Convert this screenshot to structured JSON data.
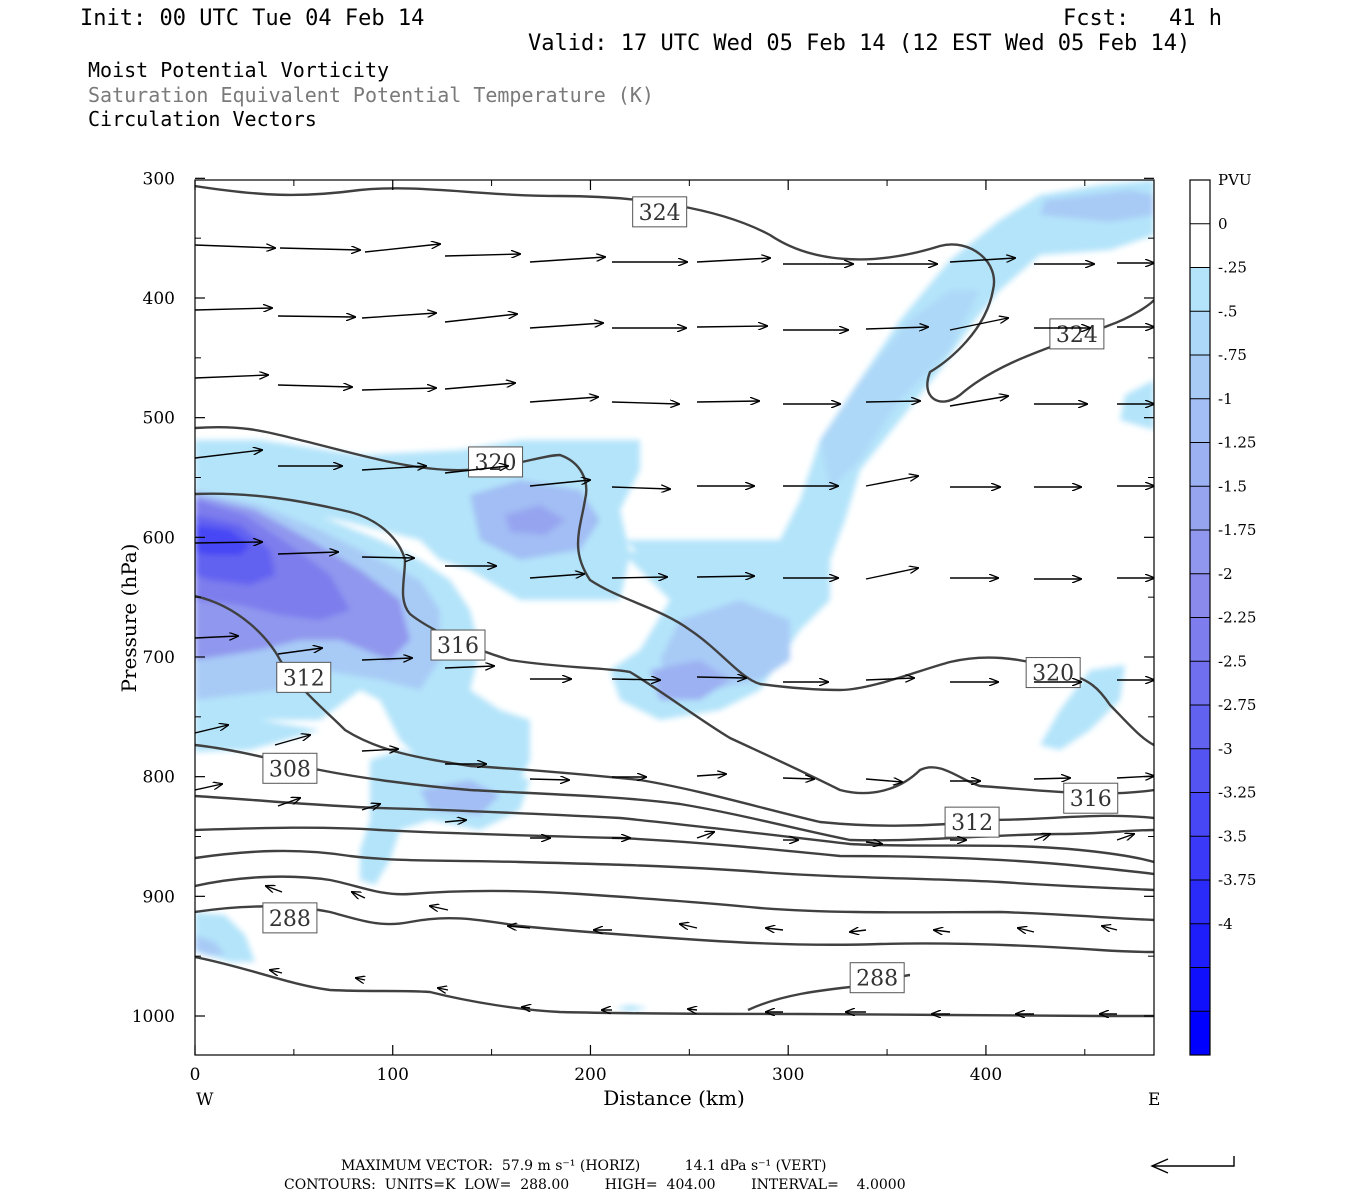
{
  "header": {
    "init": "Init: 00 UTC Tue 04 Feb 14",
    "fcst": "Fcst:   41 h",
    "valid": "Valid: 17 UTC Wed 05 Feb 14 (12 EST Wed 05 Feb 14)"
  },
  "titles": {
    "line1": "Moist Potential Vorticity",
    "line2": "Saturation Equivalent Potential Temperature (K)",
    "line3": "Circulation Vectors"
  },
  "colors": {
    "shading": [
      "#ffffff",
      "#ffffff",
      "#b4e4fa",
      "#aed8f8",
      "#a8cbf6",
      "#a2bef4",
      "#9cb1f2",
      "#96a4f0",
      "#9097ee",
      "#8a8aec",
      "#7d7ded",
      "#6f6fef",
      "#6262f1",
      "#5454f3",
      "#4747f5",
      "#3939f7",
      "#2b2bf9",
      "#1e1efb",
      "#1010fd",
      "#0000ff"
    ],
    "contour": "#404040"
  },
  "chart_data": {
    "type": "heatmap",
    "xlabel": "Distance (km)",
    "ylabel": "Pressure (hPa)",
    "xlim": [
      0,
      485
    ],
    "ylim": [
      1040,
      300
    ],
    "x_ticks": [
      "0",
      "100",
      "200",
      "300",
      "400"
    ],
    "y_ticks": [
      "300",
      "400",
      "500",
      "600",
      "700",
      "800",
      "900",
      "1000"
    ],
    "x_end_labels": {
      "left": "W",
      "right": "E"
    },
    "colorbar": {
      "unit": "PVU",
      "labels": [
        "0",
        "-.25",
        "-.5",
        "-.75",
        "-1",
        "-1.25",
        "-1.5",
        "-1.75",
        "-2",
        "-2.25",
        "-2.5",
        "-2.75",
        "-3",
        "-3.25",
        "-3.5",
        "-3.75",
        "-4"
      ]
    },
    "contour_labels": [
      {
        "text": "324",
        "x": 235,
        "p": 328
      },
      {
        "text": "324",
        "x": 446,
        "p": 430
      },
      {
        "text": "320",
        "x": 152,
        "p": 537
      },
      {
        "text": "320",
        "x": 434,
        "p": 713
      },
      {
        "text": "316",
        "x": 133,
        "p": 690
      },
      {
        "text": "316",
        "x": 453,
        "p": 818
      },
      {
        "text": "312",
        "x": 55,
        "p": 717
      },
      {
        "text": "312",
        "x": 393,
        "p": 838
      },
      {
        "text": "308",
        "x": 48,
        "p": 793
      },
      {
        "text": "288",
        "x": 48,
        "p": 918
      },
      {
        "text": "288",
        "x": 345,
        "p": 968
      }
    ],
    "footer": {
      "max_vector": "MAXIMUM VECTOR:  57.9 m s⁻¹ (HORIZ)          14.1 dPa s⁻¹ (VERT)",
      "contours": "CONTOURS:  UNITS=K  LOW=  288.00        HIGH=  404.00        INTERVAL=    4.0000"
    }
  }
}
